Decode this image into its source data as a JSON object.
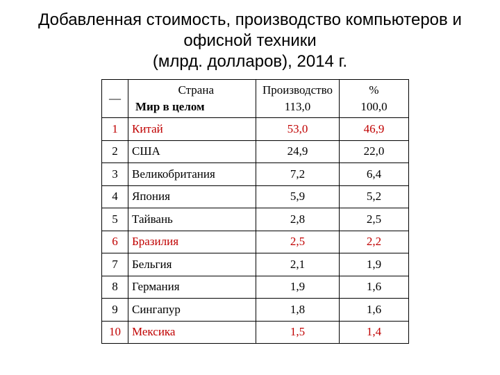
{
  "title": {
    "line1": "Добавленная стоимость, производство компьютеров и",
    "line2": "офисной техники",
    "line3": "(млрд. долларов), 2014 г."
  },
  "table": {
    "header": {
      "country_label": "Страна",
      "world_marker": "—",
      "world_label": "Мир в целом",
      "production_label": "Производство",
      "world_production": "113,0",
      "percent_label": "%",
      "world_percent": "100,0"
    },
    "rows": [
      {
        "rank": "1",
        "country": "Китай",
        "production": "53,0",
        "percent": "46,9",
        "highlight": "#c00000"
      },
      {
        "rank": "2",
        "country": "США",
        "production": "24,9",
        "percent": "22,0"
      },
      {
        "rank": "3",
        "country": "Великобритания",
        "production": "7,2",
        "percent": "6,4"
      },
      {
        "rank": "4",
        "country": "Япония",
        "production": "5,9",
        "percent": "5,2"
      },
      {
        "rank": "5",
        "country": "Тайвань",
        "production": "2,8",
        "percent": "2,5"
      },
      {
        "rank": "6",
        "country": "Бразилия",
        "production": "2,5",
        "percent": "2,2",
        "highlight": "#c00000"
      },
      {
        "rank": "7",
        "country": "Бельгия",
        "production": "2,1",
        "percent": "1,9"
      },
      {
        "rank": "8",
        "country": "Германия",
        "production": "1,9",
        "percent": "1,6"
      },
      {
        "rank": "9",
        "country": "Сингапур",
        "production": "1,8",
        "percent": "1,6"
      },
      {
        "rank": "10",
        "country": "Мексика",
        "production": "1,5",
        "percent": "1,4",
        "highlight": "#c00000"
      }
    ]
  }
}
